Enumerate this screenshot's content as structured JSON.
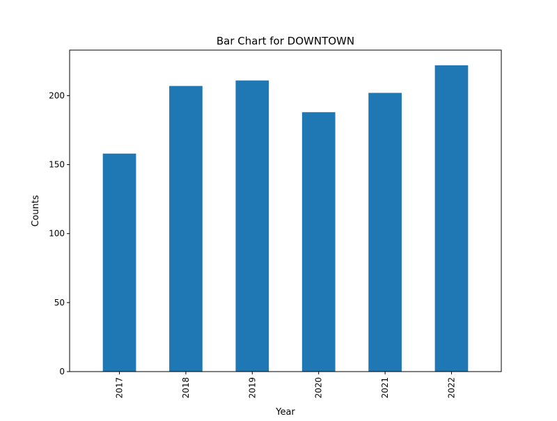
{
  "chart_data": {
    "type": "bar",
    "title": "Bar Chart for DOWNTOWN",
    "xlabel": "Year",
    "ylabel": "Counts",
    "categories": [
      "2017",
      "2018",
      "2019",
      "2020",
      "2021",
      "2022"
    ],
    "values": [
      158,
      207,
      211,
      188,
      202,
      222
    ],
    "ylim": [
      0,
      233
    ],
    "yticks": [
      0,
      50,
      100,
      150,
      200
    ],
    "ytick_labels": [
      "0",
      "50",
      "100",
      "150",
      "200"
    ],
    "xtick_rotation": "vertical",
    "grid": false,
    "legend": "none",
    "bar_color": "#1f77b4"
  }
}
